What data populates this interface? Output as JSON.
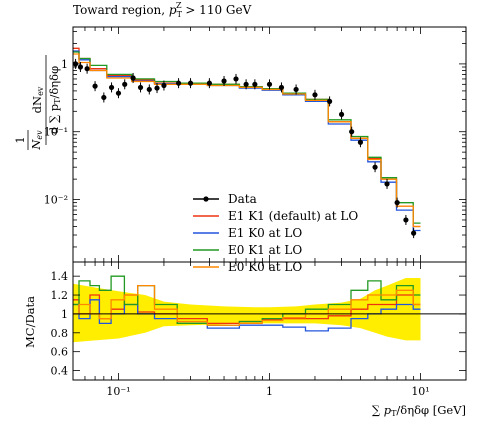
{
  "chart_data": [
    {
      "panel": "main",
      "type": "line",
      "title": "Toward region, p_T^Z > 110 GeV",
      "xlabel": "∑ p_T / δη δφ [GeV]",
      "ylabel": "1/N_ev dN_ev / d∑p_T/δηδφ",
      "xscale": "log",
      "yscale": "log",
      "xlim": [
        0.05,
        20
      ],
      "ylim": [
        0.0012,
        3.5
      ],
      "x_ticks": [
        0.1,
        1,
        10
      ],
      "x_tick_labels": [
        "10⁻¹",
        "1",
        "10¹"
      ],
      "y_ticks": [
        0.01,
        0.1,
        1
      ],
      "y_tick_labels": [
        "10⁻²",
        "10⁻¹",
        "1"
      ],
      "legend": "center",
      "series": [
        {
          "name": "Data",
          "color": "#000000",
          "x": [
            0.052,
            0.056,
            0.062,
            0.07,
            0.08,
            0.09,
            0.1,
            0.11,
            0.125,
            0.14,
            0.16,
            0.18,
            0.2,
            0.25,
            0.3,
            0.4,
            0.5,
            0.6,
            0.7,
            0.8,
            1.0,
            1.2,
            1.5,
            2.0,
            2.5,
            3.0,
            3.5,
            4.0,
            5.0,
            6.0,
            7.0,
            8.0,
            9.0
          ],
          "y": [
            1.0,
            0.9,
            0.85,
            0.47,
            0.32,
            0.45,
            0.37,
            0.5,
            0.62,
            0.45,
            0.42,
            0.44,
            0.48,
            0.52,
            0.52,
            0.52,
            0.56,
            0.6,
            0.5,
            0.5,
            0.5,
            0.45,
            0.42,
            0.35,
            0.28,
            0.18,
            0.1,
            0.07,
            0.03,
            0.017,
            0.009,
            0.005,
            0.0032
          ]
        },
        {
          "name": "E1 K1 (default) at LO",
          "color": "#ee3311",
          "x": [
            0.05,
            0.06,
            0.07,
            0.1,
            0.15,
            0.2,
            0.3,
            0.5,
            0.8,
            1.0,
            1.5,
            2.0,
            3.0,
            4.0,
            5.0,
            6.0,
            8.0,
            10.0
          ],
          "y": [
            1.7,
            1.2,
            0.85,
            0.68,
            0.58,
            0.52,
            0.52,
            0.5,
            0.46,
            0.43,
            0.37,
            0.3,
            0.14,
            0.08,
            0.04,
            0.02,
            0.008,
            0.004
          ]
        },
        {
          "name": "E1 K0 at LO",
          "color": "#2255dd",
          "x": [
            0.05,
            0.06,
            0.07,
            0.1,
            0.15,
            0.2,
            0.3,
            0.5,
            0.8,
            1.0,
            1.5,
            2.0,
            3.0,
            4.0,
            5.0,
            6.0,
            8.0,
            10.0
          ],
          "y": [
            1.55,
            1.15,
            0.8,
            0.65,
            0.56,
            0.51,
            0.5,
            0.48,
            0.44,
            0.41,
            0.35,
            0.28,
            0.13,
            0.075,
            0.036,
            0.018,
            0.007,
            0.0035
          ]
        },
        {
          "name": "E0 K1 at LO",
          "color": "#229922",
          "x": [
            0.05,
            0.06,
            0.07,
            0.1,
            0.15,
            0.2,
            0.3,
            0.5,
            0.8,
            1.0,
            1.5,
            2.0,
            3.0,
            4.0,
            5.0,
            6.0,
            8.0,
            10.0
          ],
          "y": [
            1.5,
            1.2,
            0.95,
            0.7,
            0.6,
            0.55,
            0.52,
            0.5,
            0.46,
            0.43,
            0.37,
            0.3,
            0.15,
            0.085,
            0.042,
            0.021,
            0.009,
            0.0045
          ]
        },
        {
          "name": "E0 K0 at LO",
          "color": "#ff8800",
          "x": [
            0.05,
            0.06,
            0.07,
            0.1,
            0.15,
            0.2,
            0.3,
            0.5,
            0.8,
            1.0,
            1.5,
            2.0,
            3.0,
            4.0,
            5.0,
            6.0,
            8.0,
            10.0
          ],
          "y": [
            1.4,
            1.05,
            0.8,
            0.62,
            0.55,
            0.5,
            0.5,
            0.48,
            0.45,
            0.42,
            0.36,
            0.29,
            0.14,
            0.08,
            0.039,
            0.02,
            0.008,
            0.004
          ]
        }
      ]
    },
    {
      "panel": "ratio",
      "type": "line",
      "xlabel": "∑ p_T / δη δφ [GeV]",
      "ylabel": "MC/Data",
      "xscale": "log",
      "xlim": [
        0.05,
        20
      ],
      "ylim": [
        0.3,
        1.55
      ],
      "y_ticks": [
        0.4,
        0.6,
        0.8,
        1.0,
        1.2,
        1.4
      ],
      "y_tick_labels": [
        "0.4",
        "0.6",
        "0.8",
        "1",
        "1.2",
        "1.4"
      ],
      "x_ticks": [
        0.1,
        1,
        10
      ],
      "x_tick_labels": [
        "10⁻¹",
        "1",
        "10¹"
      ],
      "band": {
        "color": "#ffee00",
        "x": [
          0.05,
          0.07,
          0.1,
          0.15,
          0.2,
          0.3,
          0.5,
          0.8,
          1.0,
          1.5,
          2.0,
          3.0,
          4.0,
          5.0,
          6.0,
          8.0,
          10.0
        ],
        "lower": [
          0.7,
          0.72,
          0.74,
          0.8,
          0.87,
          0.88,
          0.89,
          0.9,
          0.9,
          0.9,
          0.9,
          0.88,
          0.85,
          0.8,
          0.76,
          0.72,
          0.72
        ],
        "upper": [
          1.32,
          1.28,
          1.24,
          1.2,
          1.13,
          1.1,
          1.08,
          1.07,
          1.07,
          1.08,
          1.1,
          1.12,
          1.16,
          1.25,
          1.3,
          1.38,
          1.38
        ]
      },
      "series": [
        {
          "name": "E1 K1 (default) at LO",
          "color": "#ee3311",
          "x": [
            0.05,
            0.06,
            0.07,
            0.08,
            0.1,
            0.12,
            0.15,
            0.2,
            0.3,
            0.5,
            0.8,
            1.0,
            1.5,
            2.0,
            3.0,
            4.0,
            5.0,
            6.0,
            8.0,
            10.0
          ],
          "y": [
            1.15,
            1.0,
            1.2,
            0.95,
            1.05,
            1.2,
            1.02,
            1.0,
            0.95,
            0.9,
            0.92,
            0.94,
            0.95,
            0.95,
            0.98,
            1.05,
            1.1,
            1.1,
            1.2,
            1.1
          ]
        },
        {
          "name": "E1 K0 at LO",
          "color": "#2255dd",
          "x": [
            0.05,
            0.06,
            0.07,
            0.08,
            0.1,
            0.12,
            0.15,
            0.2,
            0.3,
            0.5,
            0.8,
            1.0,
            1.5,
            2.0,
            3.0,
            4.0,
            5.0,
            6.0,
            8.0,
            10.0
          ],
          "y": [
            1.1,
            0.95,
            1.15,
            0.9,
            1.0,
            1.1,
            1.0,
            0.95,
            0.9,
            0.85,
            0.88,
            0.88,
            0.86,
            0.82,
            0.85,
            0.95,
            1.0,
            1.05,
            1.1,
            1.05
          ]
        },
        {
          "name": "E0 K1 at LO",
          "color": "#229922",
          "x": [
            0.05,
            0.06,
            0.07,
            0.08,
            0.1,
            0.12,
            0.15,
            0.2,
            0.3,
            0.5,
            0.8,
            1.0,
            1.5,
            2.0,
            3.0,
            4.0,
            5.0,
            6.0,
            8.0,
            10.0
          ],
          "y": [
            1.1,
            1.35,
            1.3,
            1.25,
            1.4,
            1.1,
            1.3,
            1.1,
            0.9,
            0.88,
            0.92,
            0.95,
            1.0,
            1.05,
            1.1,
            1.25,
            1.35,
            1.15,
            1.3,
            1.2
          ]
        },
        {
          "name": "E0 K0 at LO",
          "color": "#ff8800",
          "x": [
            0.05,
            0.06,
            0.07,
            0.08,
            0.1,
            0.12,
            0.15,
            0.2,
            0.3,
            0.5,
            0.8,
            1.0,
            1.5,
            2.0,
            3.0,
            4.0,
            5.0,
            6.0,
            8.0,
            10.0
          ],
          "y": [
            1.0,
            1.1,
            1.0,
            0.95,
            1.15,
            1.2,
            1.3,
            1.05,
            0.92,
            0.88,
            0.9,
            0.93,
            0.96,
            1.0,
            1.05,
            1.15,
            1.2,
            1.2,
            1.25,
            1.1
          ]
        }
      ]
    }
  ]
}
